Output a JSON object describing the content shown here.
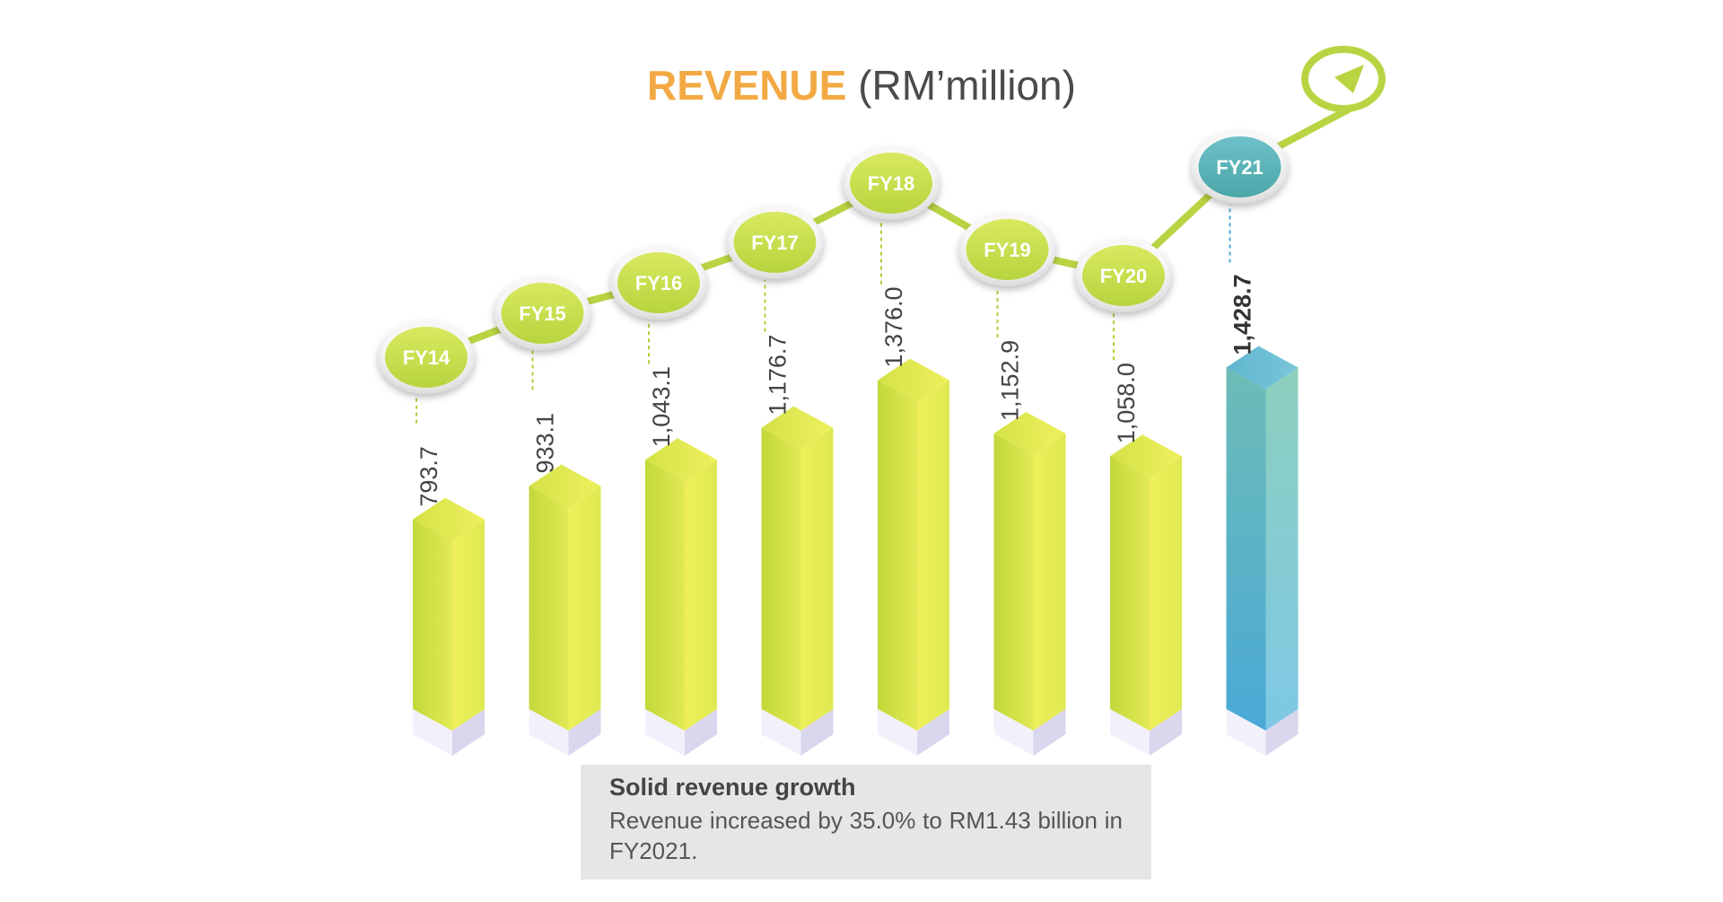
{
  "title": {
    "main": "REVENUE",
    "unit": "(RM’million)"
  },
  "chart_data": {
    "type": "bar",
    "title": "REVENUE (RM’million)",
    "xlabel": "",
    "ylabel": "",
    "categories": [
      "FY14",
      "FY15",
      "FY16",
      "FY17",
      "FY18",
      "FY19",
      "FY20",
      "FY21"
    ],
    "values": [
      793.7,
      933.1,
      1043.1,
      1176.7,
      1376.0,
      1152.9,
      1058.0,
      1428.7
    ],
    "value_labels": [
      "793.7",
      "933.1",
      "1,043.1",
      "1,176.7",
      "1,376.0",
      "1,152.9",
      "1,058.0",
      "1,428.7"
    ],
    "highlight_category": "FY21",
    "grid": false,
    "legend": "none"
  },
  "colors": {
    "bar": "#d6e44a",
    "bar_highlight": "#5fb6cf",
    "trend_line": "#b9d443",
    "title_accent": "#f2a944",
    "note_background": "#e6e6e6"
  },
  "note": {
    "heading": "Solid revenue growth",
    "body": "Revenue increased by 35.0% to RM1.43 billion in FY2021."
  }
}
